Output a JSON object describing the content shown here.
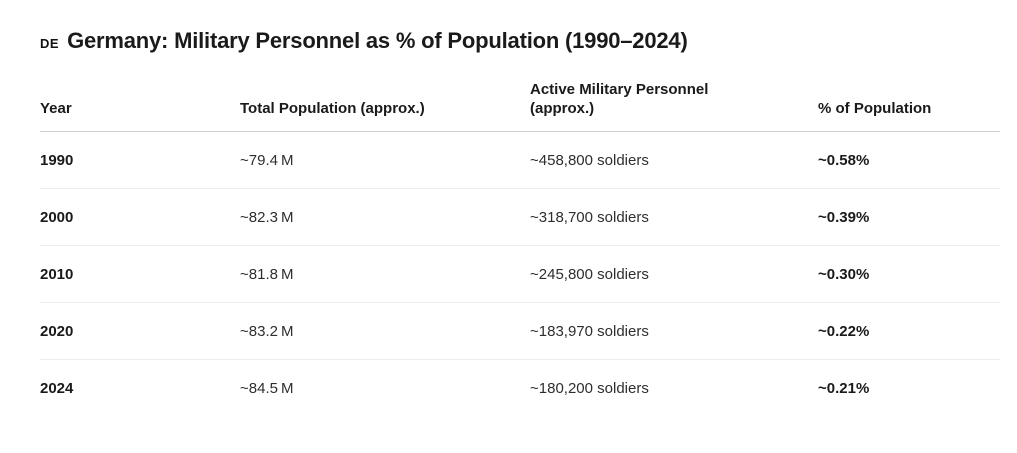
{
  "title": {
    "flag": "DE",
    "text": "Germany: Military Personnel as % of Population (1990–2024)"
  },
  "colors": {
    "background": "#ffffff",
    "text_primary": "#1a1a1a",
    "text_secondary": "#2e2e2e",
    "header_divider": "#d0d0d0",
    "row_divider": "#ececec"
  },
  "chart_data": {
    "type": "table",
    "title": "Germany: Military Personnel as % of Population (1990–2024)",
    "columns": [
      "Year",
      "Total Population (approx.)",
      "Active Military Personnel (approx.)",
      "% of Population"
    ],
    "rows": [
      {
        "year": "1990",
        "population": "~79.4 M",
        "military": "~458,800 soldiers",
        "percent": "~0.58%"
      },
      {
        "year": "2000",
        "population": "~82.3 M",
        "military": "~318,700 soldiers",
        "percent": "~0.39%"
      },
      {
        "year": "2010",
        "population": "~81.8 M",
        "military": "~245,800 soldiers",
        "percent": "~0.30%"
      },
      {
        "year": "2020",
        "population": "~83.2 M",
        "military": "~183,970 soldiers",
        "percent": "~0.22%"
      },
      {
        "year": "2024",
        "population": "~84.5 M",
        "military": "~180,200 soldiers",
        "percent": "~0.21%"
      }
    ],
    "numeric": {
      "years": [
        1990,
        2000,
        2010,
        2020,
        2024
      ],
      "total_population_millions": [
        79.4,
        82.3,
        81.8,
        83.2,
        84.5
      ],
      "active_military_personnel": [
        458800,
        318700,
        245800,
        183970,
        180200
      ],
      "percent_of_population": [
        0.58,
        0.39,
        0.3,
        0.22,
        0.21
      ]
    }
  }
}
